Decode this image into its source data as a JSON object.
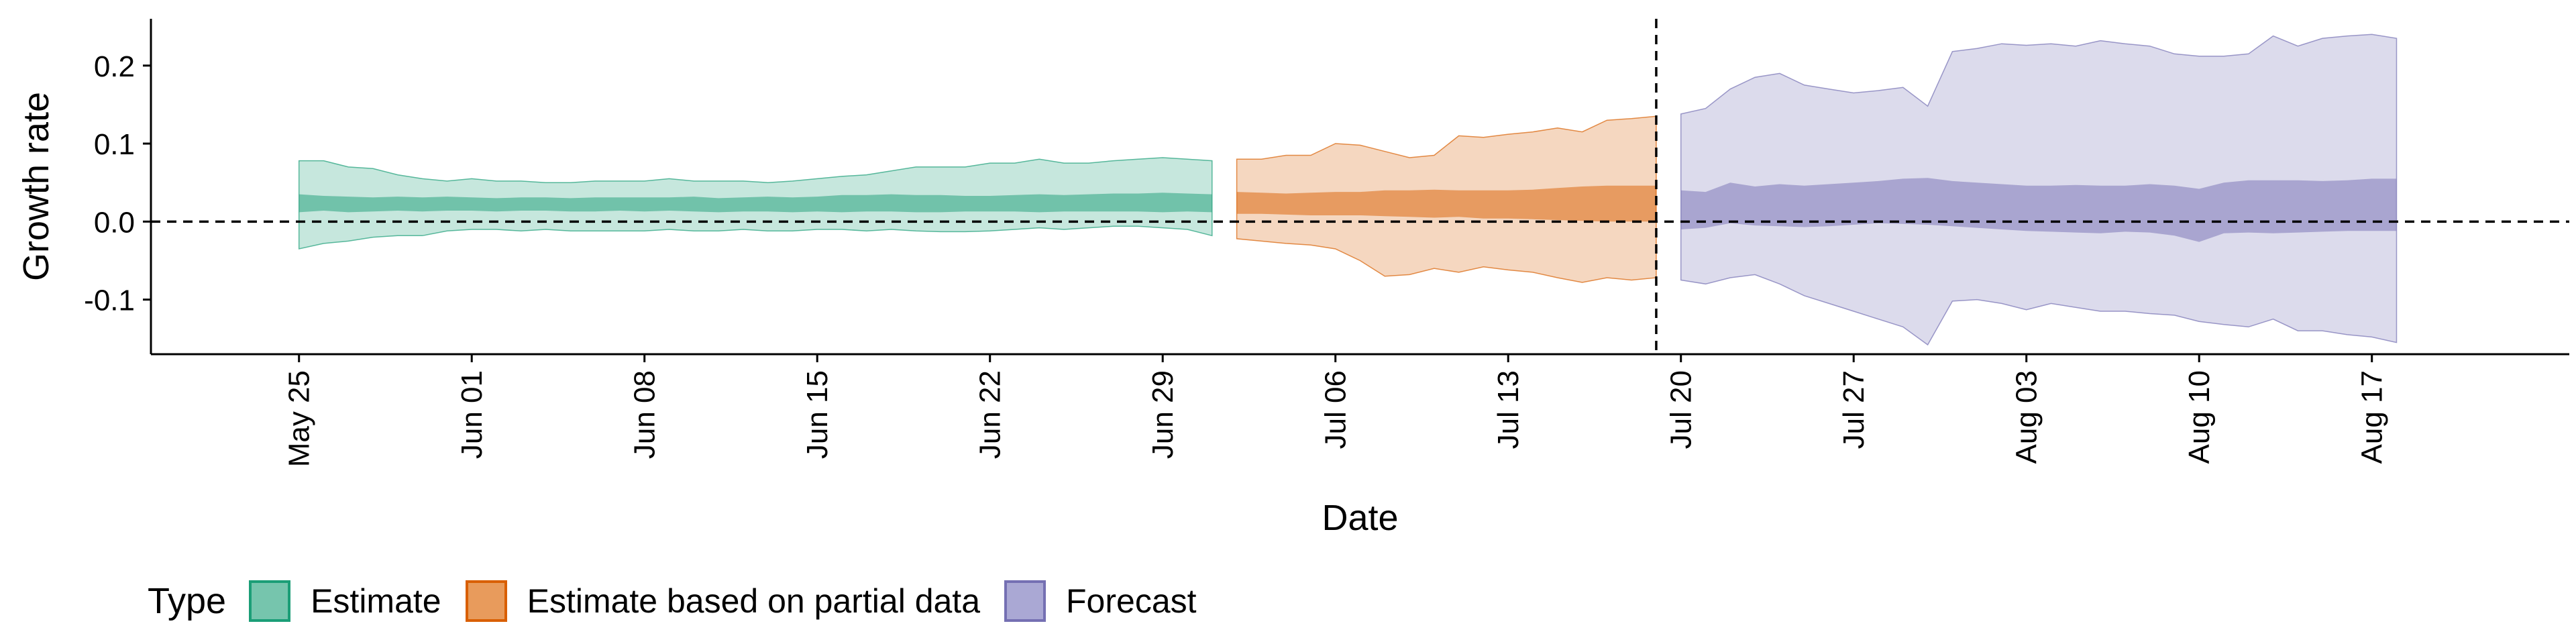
{
  "chart_data": {
    "type": "area",
    "xlabel": "Date",
    "ylabel": "Growth rate",
    "ylim": [
      -0.17,
      0.26
    ],
    "xlim": [
      "2020-05-19",
      "2020-08-25"
    ],
    "yticks": [
      -0.1,
      0.0,
      0.1,
      0.2
    ],
    "ytick_labels": [
      "-0.1",
      "0.0",
      "0.1",
      "0.2"
    ],
    "xticks": [
      "2020-05-25",
      "2020-06-01",
      "2020-06-08",
      "2020-06-15",
      "2020-06-22",
      "2020-06-29",
      "2020-07-06",
      "2020-07-13",
      "2020-07-20",
      "2020-07-27",
      "2020-08-03",
      "2020-08-10",
      "2020-08-17"
    ],
    "xtick_labels": [
      "May 25",
      "Jun 01",
      "Jun 08",
      "Jun 15",
      "Jun 22",
      "Jun 29",
      "Jul 06",
      "Jul 13",
      "Jul 20",
      "Jul 27",
      "Aug 03",
      "Aug 10",
      "Aug 17"
    ],
    "reference_hline": 0.0,
    "reference_vline": "2020-07-19",
    "grid": false,
    "legend": {
      "title": "Type",
      "position": "bottom-left",
      "entries": [
        "Estimate",
        "Estimate based on partial data",
        "Forecast"
      ]
    },
    "series": [
      {
        "name": "Estimate",
        "color": "#1b9e77",
        "x": [
          "2020-05-25",
          "2020-05-26",
          "2020-05-27",
          "2020-05-28",
          "2020-05-29",
          "2020-05-30",
          "2020-05-31",
          "2020-06-01",
          "2020-06-02",
          "2020-06-03",
          "2020-06-04",
          "2020-06-05",
          "2020-06-06",
          "2020-06-07",
          "2020-06-08",
          "2020-06-09",
          "2020-06-10",
          "2020-06-11",
          "2020-06-12",
          "2020-06-13",
          "2020-06-14",
          "2020-06-15",
          "2020-06-16",
          "2020-06-17",
          "2020-06-18",
          "2020-06-19",
          "2020-06-20",
          "2020-06-21",
          "2020-06-22",
          "2020-06-23",
          "2020-06-24",
          "2020-06-25",
          "2020-06-26",
          "2020-06-27",
          "2020-06-28",
          "2020-06-29",
          "2020-06-30",
          "2020-07-01"
        ],
        "lower_90": [
          -0.035,
          -0.028,
          -0.025,
          -0.02,
          -0.018,
          -0.018,
          -0.012,
          -0.01,
          -0.01,
          -0.012,
          -0.01,
          -0.012,
          -0.012,
          -0.012,
          -0.012,
          -0.01,
          -0.012,
          -0.012,
          -0.01,
          -0.012,
          -0.012,
          -0.01,
          -0.01,
          -0.012,
          -0.01,
          -0.012,
          -0.013,
          -0.013,
          -0.012,
          -0.01,
          -0.008,
          -0.01,
          -0.008,
          -0.006,
          -0.006,
          -0.008,
          -0.01,
          -0.018
        ],
        "upper_90": [
          0.078,
          0.078,
          0.07,
          0.068,
          0.06,
          0.055,
          0.052,
          0.055,
          0.052,
          0.052,
          0.05,
          0.05,
          0.052,
          0.052,
          0.052,
          0.055,
          0.052,
          0.052,
          0.052,
          0.05,
          0.052,
          0.055,
          0.058,
          0.06,
          0.065,
          0.07,
          0.07,
          0.07,
          0.075,
          0.075,
          0.08,
          0.075,
          0.075,
          0.078,
          0.08,
          0.082,
          0.08,
          0.078
        ],
        "lower_50": [
          0.012,
          0.014,
          0.012,
          0.013,
          0.014,
          0.013,
          0.014,
          0.014,
          0.013,
          0.014,
          0.014,
          0.013,
          0.013,
          0.014,
          0.013,
          0.014,
          0.013,
          0.012,
          0.013,
          0.013,
          0.012,
          0.013,
          0.012,
          0.013,
          0.013,
          0.012,
          0.012,
          0.013,
          0.013,
          0.013,
          0.012,
          0.013,
          0.013,
          0.013,
          0.013,
          0.012,
          0.013,
          0.012
        ],
        "upper_50": [
          0.035,
          0.033,
          0.032,
          0.031,
          0.032,
          0.031,
          0.032,
          0.031,
          0.03,
          0.031,
          0.031,
          0.03,
          0.031,
          0.031,
          0.031,
          0.031,
          0.032,
          0.03,
          0.031,
          0.032,
          0.031,
          0.032,
          0.034,
          0.034,
          0.035,
          0.034,
          0.034,
          0.033,
          0.033,
          0.034,
          0.035,
          0.034,
          0.035,
          0.036,
          0.036,
          0.037,
          0.036,
          0.035
        ]
      },
      {
        "name": "Estimate based on partial data",
        "color": "#d95f02",
        "x": [
          "2020-07-02",
          "2020-07-03",
          "2020-07-04",
          "2020-07-05",
          "2020-07-06",
          "2020-07-07",
          "2020-07-08",
          "2020-07-09",
          "2020-07-10",
          "2020-07-11",
          "2020-07-12",
          "2020-07-13",
          "2020-07-14",
          "2020-07-15",
          "2020-07-16",
          "2020-07-17",
          "2020-07-18",
          "2020-07-19"
        ],
        "lower_90": [
          -0.022,
          -0.025,
          -0.028,
          -0.03,
          -0.035,
          -0.05,
          -0.07,
          -0.068,
          -0.06,
          -0.065,
          -0.058,
          -0.062,
          -0.065,
          -0.072,
          -0.078,
          -0.072,
          -0.075,
          -0.072
        ],
        "upper_90": [
          0.08,
          0.08,
          0.085,
          0.085,
          0.1,
          0.098,
          0.09,
          0.082,
          0.085,
          0.11,
          0.108,
          0.112,
          0.115,
          0.12,
          0.115,
          0.13,
          0.132,
          0.135
        ],
        "lower_50": [
          0.01,
          0.01,
          0.009,
          0.008,
          0.008,
          0.008,
          0.007,
          0.006,
          0.005,
          0.006,
          0.004,
          0.004,
          0.003,
          0.002,
          0.001,
          0.0,
          0.0,
          0.0
        ],
        "upper_50": [
          0.038,
          0.037,
          0.036,
          0.037,
          0.038,
          0.038,
          0.04,
          0.04,
          0.041,
          0.04,
          0.04,
          0.04,
          0.041,
          0.043,
          0.045,
          0.046,
          0.046,
          0.046
        ]
      },
      {
        "name": "Forecast",
        "color": "#7570b3",
        "x": [
          "2020-07-20",
          "2020-07-21",
          "2020-07-22",
          "2020-07-23",
          "2020-07-24",
          "2020-07-25",
          "2020-07-26",
          "2020-07-27",
          "2020-07-28",
          "2020-07-29",
          "2020-07-30",
          "2020-07-31",
          "2020-08-01",
          "2020-08-02",
          "2020-08-03",
          "2020-08-04",
          "2020-08-05",
          "2020-08-06",
          "2020-08-07",
          "2020-08-08",
          "2020-08-09",
          "2020-08-10",
          "2020-08-11",
          "2020-08-12",
          "2020-08-13",
          "2020-08-14",
          "2020-08-15",
          "2020-08-16",
          "2020-08-17",
          "2020-08-18"
        ],
        "lower_90": [
          -0.075,
          -0.08,
          -0.072,
          -0.068,
          -0.08,
          -0.095,
          -0.105,
          -0.115,
          -0.125,
          -0.135,
          -0.158,
          -0.102,
          -0.1,
          -0.105,
          -0.113,
          -0.105,
          -0.11,
          -0.115,
          -0.115,
          -0.118,
          -0.12,
          -0.128,
          -0.132,
          -0.135,
          -0.125,
          -0.14,
          -0.14,
          -0.145,
          -0.148,
          -0.155
        ],
        "upper_90": [
          0.138,
          0.145,
          0.17,
          0.185,
          0.19,
          0.175,
          0.17,
          0.165,
          0.168,
          0.172,
          0.148,
          0.218,
          0.222,
          0.228,
          0.226,
          0.228,
          0.225,
          0.232,
          0.228,
          0.225,
          0.215,
          0.212,
          0.212,
          0.215,
          0.238,
          0.225,
          0.235,
          0.238,
          0.24,
          0.235
        ],
        "lower_50": [
          -0.01,
          -0.008,
          -0.002,
          -0.005,
          -0.006,
          -0.007,
          -0.006,
          -0.004,
          -0.002,
          -0.003,
          -0.004,
          -0.006,
          -0.008,
          -0.01,
          -0.012,
          -0.013,
          -0.014,
          -0.015,
          -0.013,
          -0.014,
          -0.018,
          -0.026,
          -0.015,
          -0.014,
          -0.015,
          -0.014,
          -0.013,
          -0.012,
          -0.012,
          -0.012
        ],
        "upper_50": [
          0.04,
          0.038,
          0.05,
          0.045,
          0.048,
          0.046,
          0.048,
          0.05,
          0.052,
          0.055,
          0.056,
          0.052,
          0.05,
          0.048,
          0.046,
          0.046,
          0.047,
          0.046,
          0.046,
          0.048,
          0.046,
          0.042,
          0.05,
          0.053,
          0.053,
          0.053,
          0.052,
          0.053,
          0.055,
          0.055
        ]
      }
    ]
  }
}
